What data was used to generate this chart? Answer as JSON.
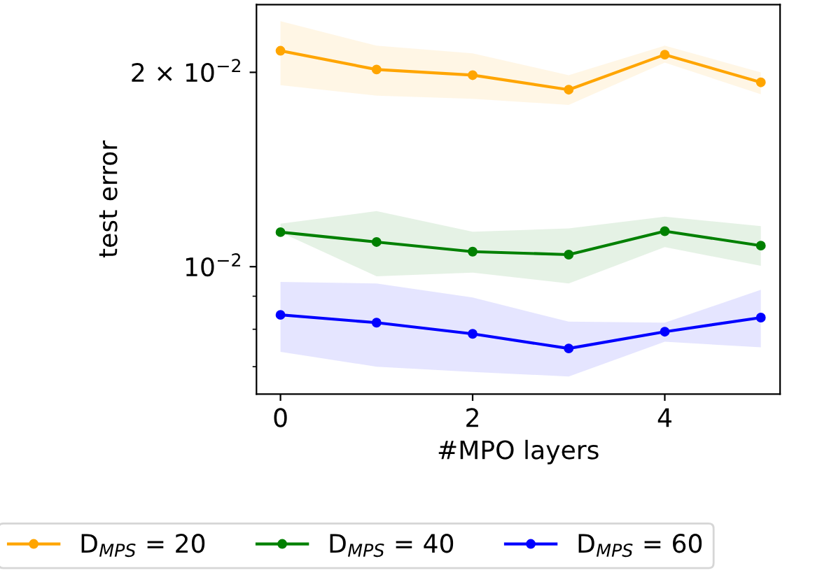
{
  "chart_data": {
    "type": "line",
    "xlabel": "#MPO layers",
    "ylabel": "test error",
    "x": [
      0,
      1,
      2,
      3,
      4,
      5
    ],
    "series": [
      {
        "name": "D$_{MPS}$ = 20",
        "color": "#ffa500",
        "values": [
          0.0216,
          0.0202,
          0.0198,
          0.0188,
          0.0213,
          0.0193
        ],
        "lower": [
          0.0191,
          0.0184,
          0.0182,
          0.0178,
          0.0207,
          0.0185
        ],
        "upper": [
          0.024,
          0.022,
          0.0214,
          0.0198,
          0.022,
          0.02
        ]
      },
      {
        "name": "D$_{MPS}$ = 40",
        "color": "#008000",
        "values": [
          0.01131,
          0.01092,
          0.01055,
          0.01044,
          0.01135,
          0.01078
        ],
        "lower": [
          0.01131,
          0.00966,
          0.00979,
          0.00942,
          0.01072,
          0.01003
        ],
        "upper": [
          0.01166,
          0.01219,
          0.01133,
          0.01146,
          0.01195,
          0.01156
        ]
      },
      {
        "name": "D$_{MPS}$ = 60",
        "color": "#0000ff",
        "values": [
          0.00842,
          0.00819,
          0.00787,
          0.00747,
          0.00793,
          0.00834
        ],
        "lower": [
          0.00738,
          0.007,
          0.00687,
          0.00676,
          0.00765,
          0.0075
        ],
        "upper": [
          0.00947,
          0.00942,
          0.00896,
          0.00822,
          0.00819,
          0.00921
        ]
      }
    ],
    "log": "y",
    "xlim": [
      -0.25,
      5.2
    ],
    "ylim": [
      0.00635,
      0.02546
    ],
    "xticks": [
      0,
      2,
      4
    ],
    "yticks": [
      {
        "value": 0.02,
        "label": "2 × 10$^{−2}$"
      },
      {
        "value": 0.01,
        "label": "10$^{−2}$"
      },
      {
        "value": 0.009,
        "label": null
      },
      {
        "value": 0.008,
        "label": null
      },
      {
        "value": 0.007,
        "label": null
      }
    ],
    "marker": "circle",
    "line_style": "solid",
    "legend": "bottom",
    "grid": false
  }
}
